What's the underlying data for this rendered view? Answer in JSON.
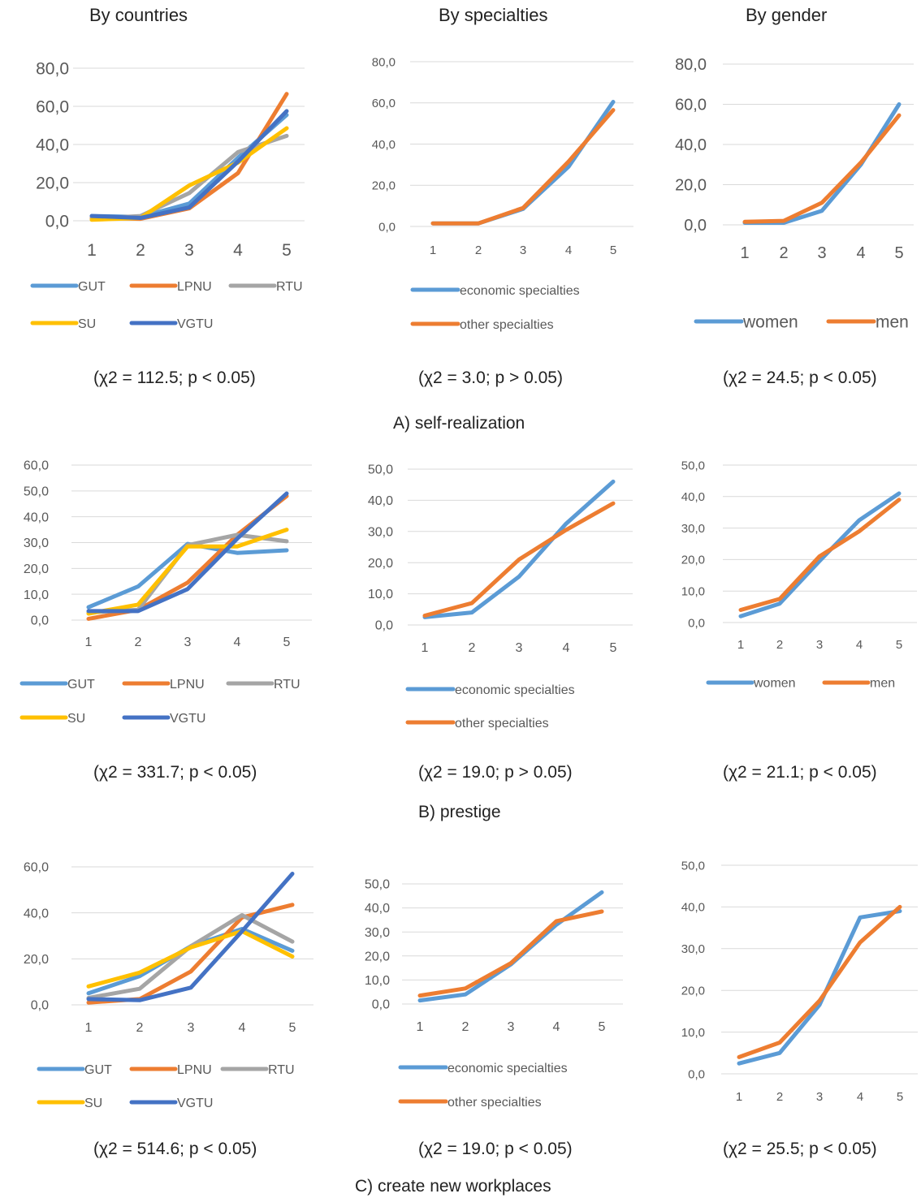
{
  "headers": {
    "countries": "By countries",
    "specialties": "By specialties",
    "gender": "By gender"
  },
  "sections": [
    {
      "label": "A) self-realization",
      "chi": [
        "(χ2 = 112.5; p < 0.05)",
        "(χ2 = 3.0; p > 0.05)",
        "(χ2 = 24.5; p < 0.05)"
      ]
    },
    {
      "label": "B) prestige",
      "chi": [
        "(χ2 = 331.7; p < 0.05)",
        "(χ2 = 19.0; p > 0.05)",
        "(χ2 = 21.1; p < 0.05)"
      ]
    },
    {
      "label": "C) create new workplaces",
      "chi": [
        "(χ2 = 514.6; p < 0.05)",
        "(χ2 = 19.0; p < 0.05)",
        "(χ2 = 25.5; p < 0.05)"
      ]
    }
  ],
  "colors": {
    "GUT": "#5B9BD5",
    "LPNU": "#ED7D31",
    "RTU": "#A5A5A5",
    "SU": "#FFC000",
    "VGTU": "#4472C4",
    "economic": "#5B9BD5",
    "other": "#ED7D31",
    "women": "#5B9BD5",
    "men": "#ED7D31"
  },
  "chart_data": [
    {
      "id": "A-countries",
      "type": "line",
      "categories": [
        "1",
        "2",
        "3",
        "4",
        "5"
      ],
      "ylim": [
        0,
        80
      ],
      "yticks": [
        "0,0",
        "20,0",
        "40,0",
        "60,0",
        "80,0"
      ],
      "grid": true,
      "legend": "bottom",
      "series": [
        {
          "name": "GUT",
          "values": [
            2.5,
            2.0,
            9.0,
            33.0,
            55.5
          ]
        },
        {
          "name": "LPNU",
          "values": [
            1.5,
            1.0,
            6.5,
            25.0,
            66.5
          ]
        },
        {
          "name": "RTU",
          "values": [
            1.0,
            2.5,
            14.5,
            36.0,
            44.5
          ]
        },
        {
          "name": "SU",
          "values": [
            0.5,
            1.5,
            18.5,
            30.5,
            48.5
          ]
        },
        {
          "name": "VGTU",
          "values": [
            2.5,
            1.5,
            7.0,
            31.0,
            57.5
          ]
        }
      ]
    },
    {
      "id": "A-specialties",
      "type": "line",
      "categories": [
        "1",
        "2",
        "3",
        "4",
        "5"
      ],
      "ylim": [
        0,
        80
      ],
      "yticks": [
        "0,0",
        "20,0",
        "40,0",
        "60,0",
        "80,0"
      ],
      "grid": true,
      "legend": "bottom",
      "series": [
        {
          "name": "economic specialties",
          "values": [
            1.5,
            1.5,
            8.5,
            29.0,
            60.5
          ]
        },
        {
          "name": "other specialties",
          "values": [
            1.5,
            1.5,
            9.0,
            31.5,
            56.5
          ]
        }
      ]
    },
    {
      "id": "A-gender",
      "type": "line",
      "categories": [
        "1",
        "2",
        "3",
        "4",
        "5"
      ],
      "ylim": [
        0,
        80
      ],
      "yticks": [
        "0,0",
        "20,0",
        "40,0",
        "60,0",
        "80,0"
      ],
      "grid": true,
      "legend": "bottom",
      "series": [
        {
          "name": "women",
          "values": [
            1.0,
            1.0,
            7.0,
            30.0,
            60.0
          ]
        },
        {
          "name": "men",
          "values": [
            1.5,
            2.0,
            11.0,
            31.0,
            54.5
          ]
        }
      ]
    },
    {
      "id": "B-countries",
      "type": "line",
      "categories": [
        "1",
        "2",
        "3",
        "4",
        "5"
      ],
      "ylim": [
        0,
        60
      ],
      "yticks": [
        "0,0",
        "10,0",
        "20,0",
        "30,0",
        "40,0",
        "50,0",
        "60,0"
      ],
      "grid": true,
      "legend": "bottom",
      "series": [
        {
          "name": "GUT",
          "values": [
            5.0,
            13.0,
            29.5,
            26.0,
            27.0
          ]
        },
        {
          "name": "LPNU",
          "values": [
            0.5,
            4.0,
            14.5,
            33.0,
            48.0
          ]
        },
        {
          "name": "RTU",
          "values": [
            3.0,
            4.0,
            29.0,
            33.0,
            30.5
          ]
        },
        {
          "name": "SU",
          "values": [
            2.5,
            6.0,
            28.5,
            28.5,
            35.0
          ]
        },
        {
          "name": "VGTU",
          "values": [
            3.5,
            3.5,
            12.0,
            31.5,
            49.0
          ]
        }
      ]
    },
    {
      "id": "B-specialties",
      "type": "line",
      "categories": [
        "1",
        "2",
        "3",
        "4",
        "5"
      ],
      "ylim": [
        0,
        50
      ],
      "yticks": [
        "0,0",
        "10,0",
        "20,0",
        "30,0",
        "40,0",
        "50,0"
      ],
      "grid": true,
      "legend": "bottom",
      "series": [
        {
          "name": "economic specialties",
          "values": [
            2.5,
            4.0,
            15.5,
            32.5,
            46.0
          ]
        },
        {
          "name": "other specialties",
          "values": [
            3.0,
            7.0,
            21.0,
            30.5,
            39.0
          ]
        }
      ]
    },
    {
      "id": "B-gender",
      "type": "line",
      "categories": [
        "1",
        "2",
        "3",
        "4",
        "5"
      ],
      "ylim": [
        0,
        50
      ],
      "yticks": [
        "0,0",
        "10,0",
        "20,0",
        "30,0",
        "40,0",
        "50,0"
      ],
      "grid": true,
      "legend": "bottom",
      "series": [
        {
          "name": "women",
          "values": [
            2.0,
            6.0,
            19.5,
            32.5,
            41.0
          ]
        },
        {
          "name": "men",
          "values": [
            4.0,
            7.5,
            21.0,
            29.0,
            39.0
          ]
        }
      ]
    },
    {
      "id": "C-countries",
      "type": "line",
      "categories": [
        "1",
        "2",
        "3",
        "4",
        "5"
      ],
      "ylim": [
        0,
        60
      ],
      "yticks": [
        "0,0",
        "20,0",
        "40,0",
        "60,0"
      ],
      "grid": true,
      "legend": "bottom",
      "series": [
        {
          "name": "GUT",
          "values": [
            5.0,
            12.5,
            25.5,
            33.0,
            23.5
          ]
        },
        {
          "name": "LPNU",
          "values": [
            1.0,
            2.5,
            14.5,
            38.0,
            43.5
          ]
        },
        {
          "name": "RTU",
          "values": [
            3.0,
            7.0,
            25.5,
            39.0,
            27.5
          ]
        },
        {
          "name": "SU",
          "values": [
            8.0,
            14.0,
            25.0,
            32.0,
            21.0
          ]
        },
        {
          "name": "VGTU",
          "values": [
            2.5,
            2.0,
            7.5,
            32.0,
            57.0
          ]
        }
      ]
    },
    {
      "id": "C-specialties",
      "type": "line",
      "categories": [
        "1",
        "2",
        "3",
        "4",
        "5"
      ],
      "ylim": [
        0,
        50
      ],
      "yticks": [
        "0,0",
        "10,0",
        "20,0",
        "30,0",
        "40,0",
        "50,0"
      ],
      "grid": true,
      "legend": "bottom",
      "series": [
        {
          "name": "economic specialties",
          "values": [
            1.5,
            4.0,
            16.5,
            33.0,
            46.5
          ]
        },
        {
          "name": "other specialties",
          "values": [
            3.5,
            6.5,
            17.0,
            34.5,
            38.5
          ]
        }
      ]
    },
    {
      "id": "C-gender",
      "type": "line",
      "categories": [
        "1",
        "2",
        "3",
        "4",
        "5"
      ],
      "ylim": [
        0,
        50
      ],
      "yticks": [
        "0,0",
        "10,0",
        "20,0",
        "30,0",
        "40,0",
        "50,0"
      ],
      "grid": true,
      "legend": "none",
      "series": [
        {
          "name": "",
          "values": [
            2.5,
            5.0,
            16.5,
            37.5,
            39.0
          ]
        },
        {
          "name": "",
          "values": [
            4.0,
            7.5,
            17.5,
            31.5,
            40.0
          ]
        }
      ]
    }
  ]
}
